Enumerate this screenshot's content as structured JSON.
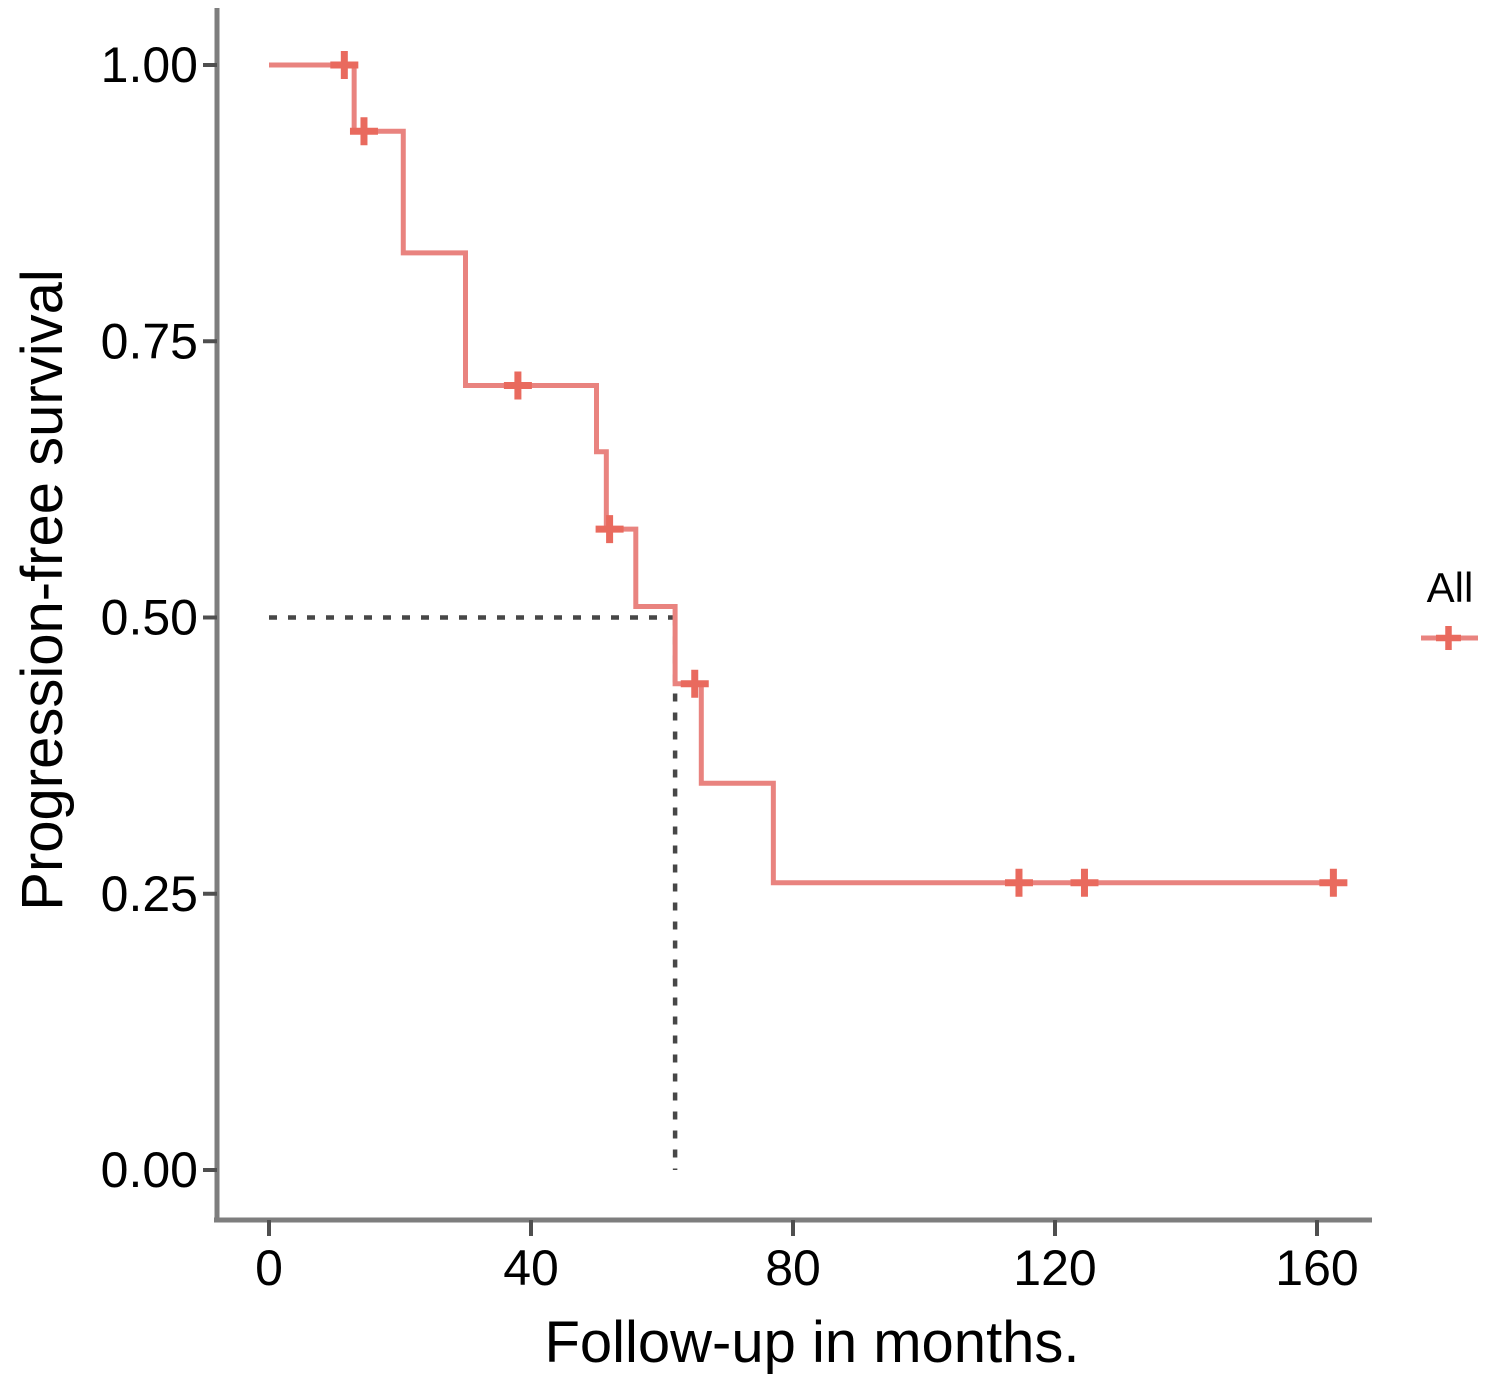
{
  "chart_data": {
    "type": "line",
    "subtype": "kaplan_meier_step_curve",
    "title": "",
    "xlabel": "Follow-up in months.",
    "ylabel": "Progression-free survival",
    "xlim": [
      0,
      168
    ],
    "ylim": [
      0,
      1.02
    ],
    "xticks": [
      0,
      40,
      80,
      120,
      160
    ],
    "yticks": [
      0,
      0.25,
      0.5,
      0.75,
      1
    ],
    "ytick_labels": [
      "0.00",
      "0.25",
      "0.50",
      "0.75",
      "1.00"
    ],
    "grid": false,
    "axis_color": "#7e7e7e",
    "tick_color": "#4f4f4f",
    "legend": {
      "position": "right",
      "entries": [
        {
          "label": "All"
        }
      ]
    },
    "series": [
      {
        "name": "All",
        "color": "#e9837f",
        "censor_color": "#e96a5e",
        "start": [
          0,
          1.0
        ],
        "drops": [
          [
            13,
            0.94
          ],
          [
            20.5,
            0.83
          ],
          [
            30,
            0.71
          ],
          [
            50,
            0.65
          ],
          [
            51.5,
            0.58
          ],
          [
            56,
            0.51
          ],
          [
            62,
            0.44
          ],
          [
            66,
            0.35
          ],
          [
            77,
            0.26
          ]
        ],
        "end_time": 163.5,
        "censors": [
          [
            11.5,
            1.0
          ],
          [
            14.5,
            0.94
          ],
          [
            38,
            0.71
          ],
          [
            52,
            0.58
          ],
          [
            65,
            0.44
          ],
          [
            114.5,
            0.26
          ],
          [
            124.5,
            0.26
          ],
          [
            162.5,
            0.26
          ]
        ]
      }
    ],
    "reference_lines": {
      "median_time": 62,
      "median_survival": 0.5,
      "line_style": "dashed",
      "color": "#474747"
    }
  }
}
